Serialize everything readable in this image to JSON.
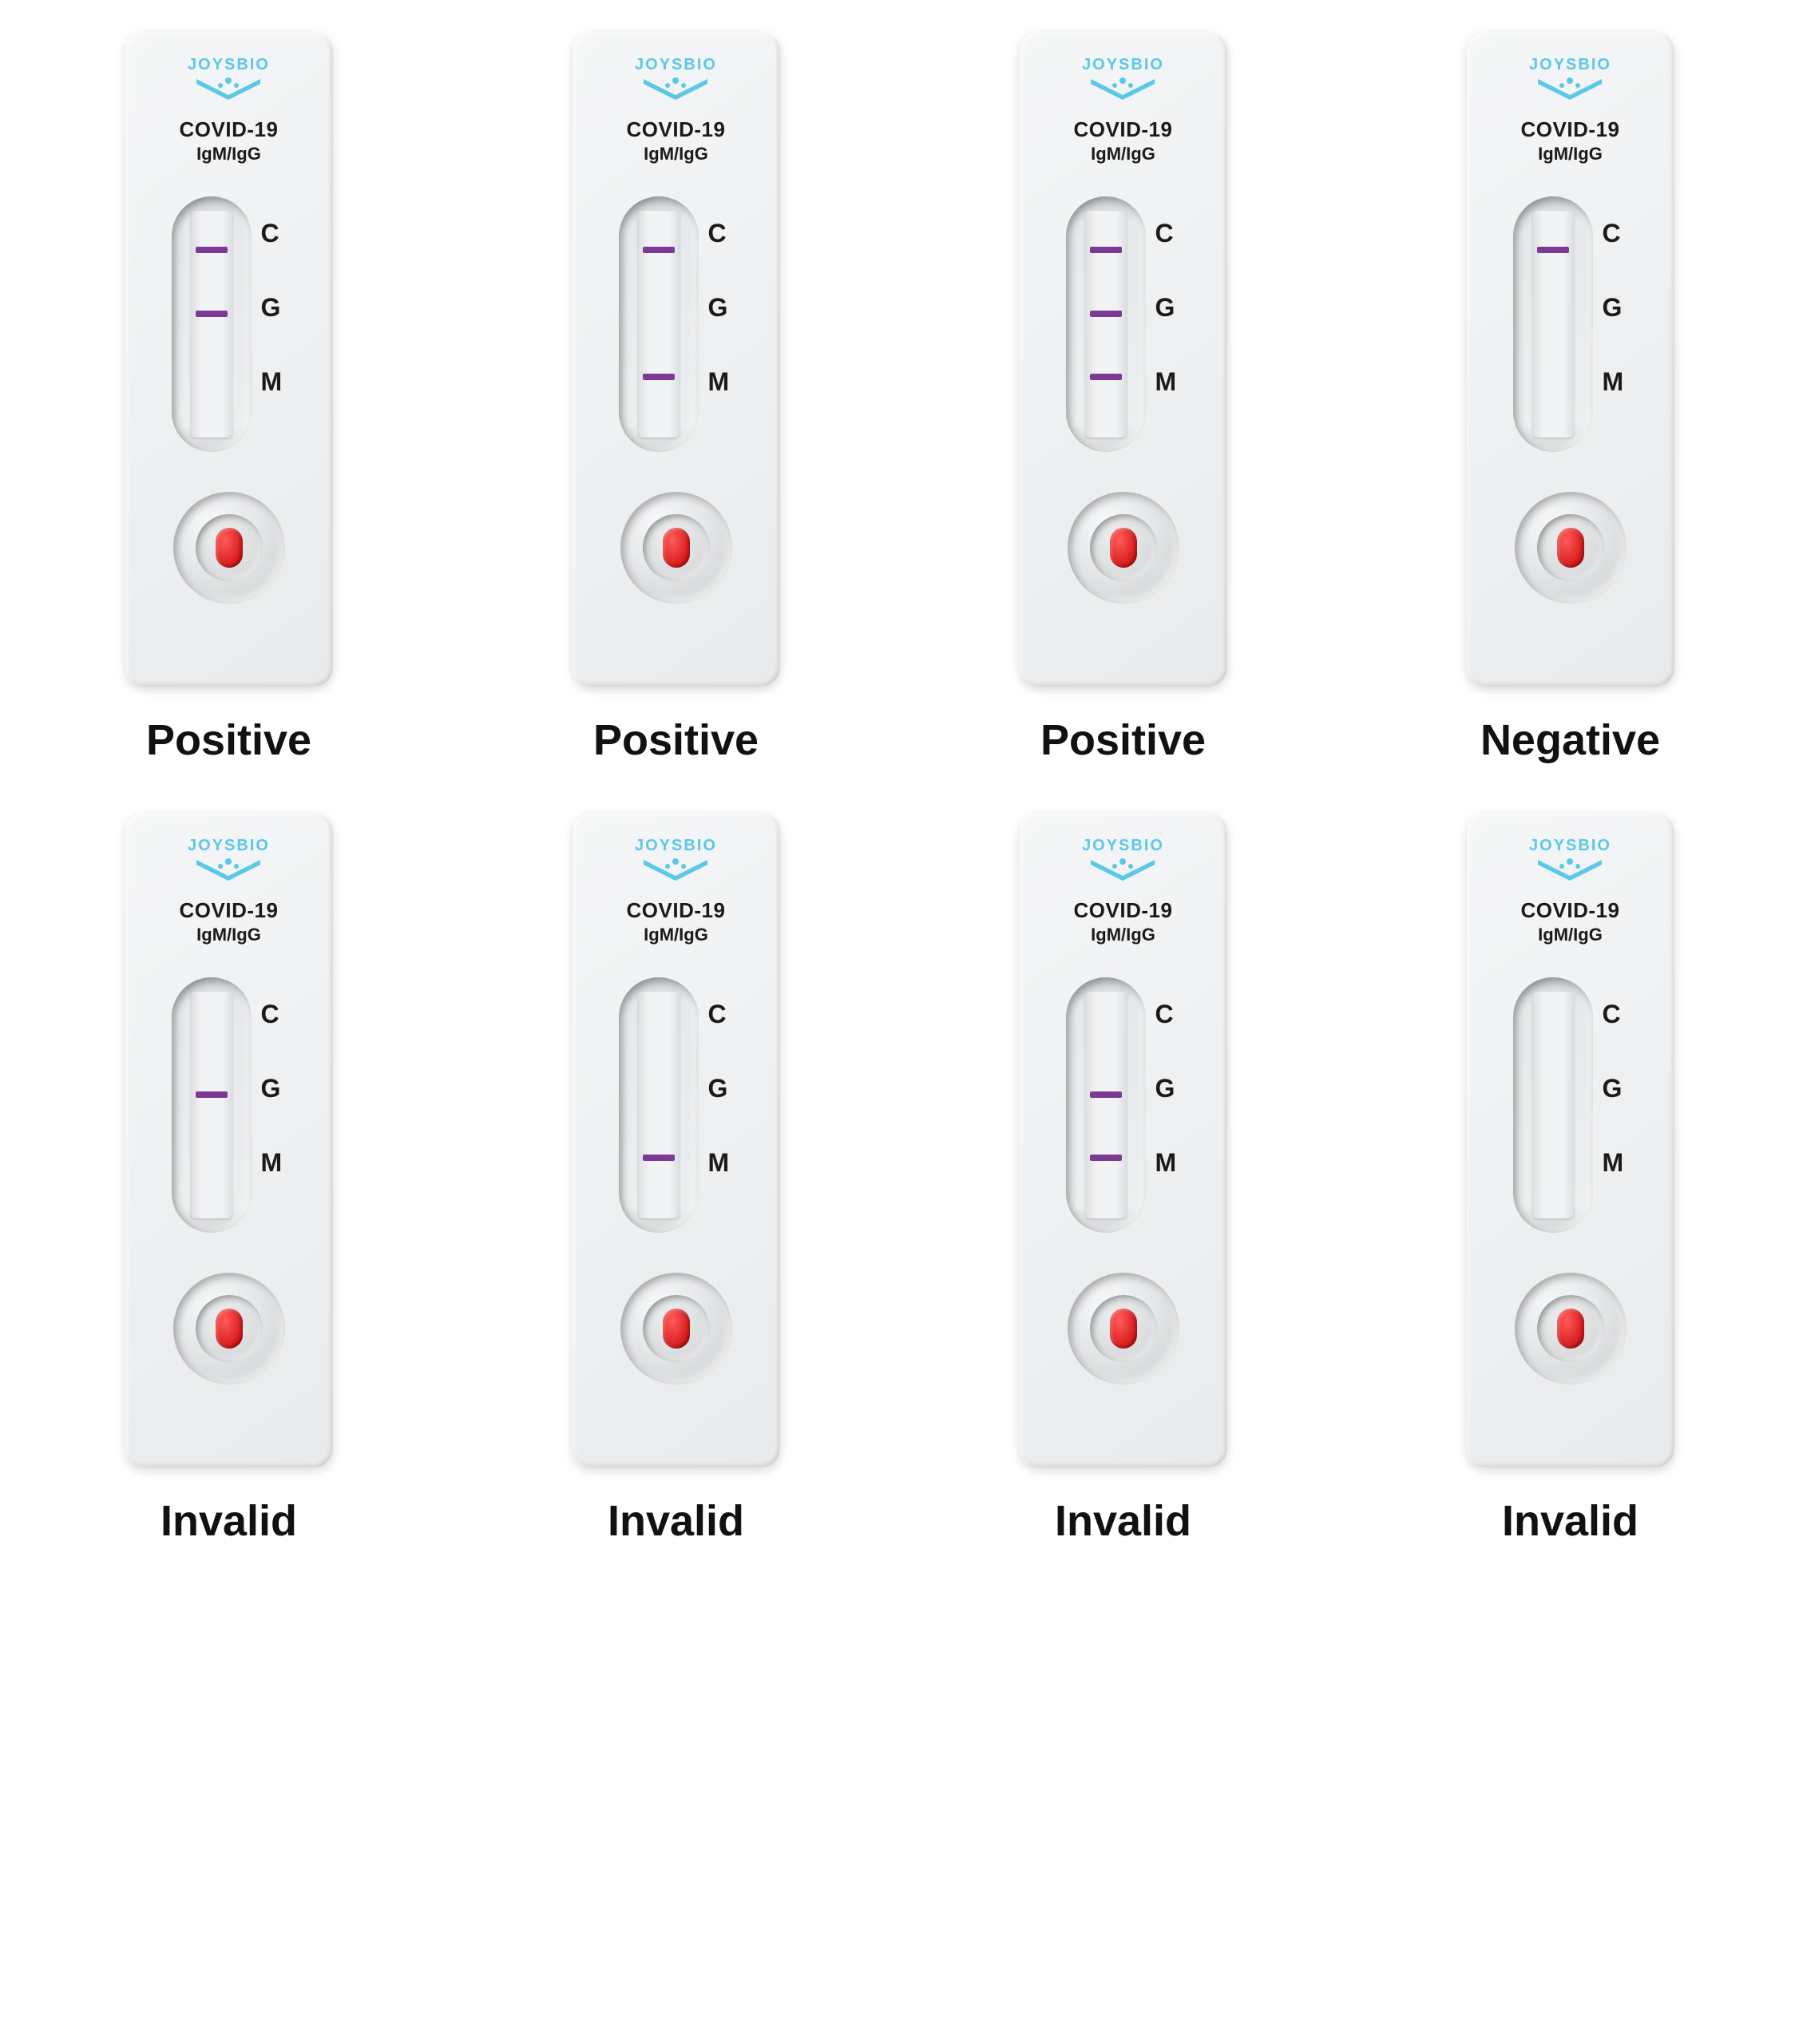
{
  "brand_text": "JOYSBIO",
  "brand_color": "#5ac8e8",
  "title_line1": "COVID-19",
  "title_line2": "IgM/IgG",
  "line_labels": {
    "c": "C",
    "g": "G",
    "m": "M"
  },
  "band_color": "#7a3a96",
  "drop_color": "#d81a1a",
  "cassette_bg": "#eceeef",
  "band_positions_pct": {
    "C": 16,
    "G": 44,
    "M": 72
  },
  "devices": [
    {
      "id": "dev-positive-cg",
      "result": "Positive",
      "bands": [
        "C",
        "G"
      ]
    },
    {
      "id": "dev-positive-cm",
      "result": "Positive",
      "bands": [
        "C",
        "M"
      ]
    },
    {
      "id": "dev-positive-cgm",
      "result": "Positive",
      "bands": [
        "C",
        "G",
        "M"
      ]
    },
    {
      "id": "dev-negative-c",
      "result": "Negative",
      "bands": [
        "C"
      ]
    },
    {
      "id": "dev-invalid-g",
      "result": "Invalid",
      "bands": [
        "G"
      ]
    },
    {
      "id": "dev-invalid-m",
      "result": "Invalid",
      "bands": [
        "M"
      ]
    },
    {
      "id": "dev-invalid-gm",
      "result": "Invalid",
      "bands": [
        "G",
        "M"
      ]
    },
    {
      "id": "dev-invalid-none",
      "result": "Invalid",
      "bands": []
    }
  ]
}
